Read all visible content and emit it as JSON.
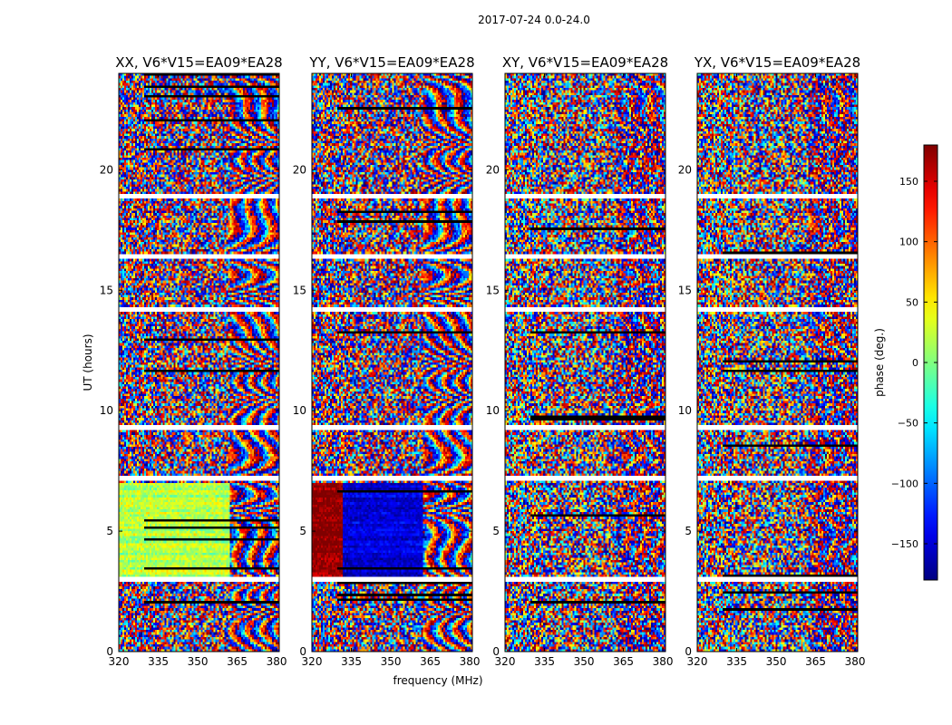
{
  "figure_title": "2017-07-24 0.0-24.0",
  "chart_data": {
    "type": "heatmap",
    "panels": [
      {
        "title": "XX, V6*V15=EA09*EA28",
        "profile": "xx",
        "ylabel": "UT (hours)",
        "xlabel": ""
      },
      {
        "title": "YY, V6*V15=EA09*EA28",
        "profile": "yy",
        "ylabel": "",
        "xlabel": "frequency (MHz)"
      },
      {
        "title": "XY, V6*V15=EA09*EA28",
        "profile": "cross",
        "ylabel": "",
        "xlabel": ""
      },
      {
        "title": "YX, V6*V15=EA09*EA28",
        "profile": "cross",
        "ylabel": "",
        "xlabel": ""
      }
    ],
    "xlim": [
      320,
      381
    ],
    "ylim": [
      0,
      24
    ],
    "x_ticks": [
      320,
      335,
      350,
      365,
      380
    ],
    "x_tick_labels": [
      "320",
      "335",
      "350",
      "365",
      "380"
    ],
    "y_ticks": [
      0,
      5,
      10,
      15,
      20
    ],
    "y_tick_labels": [
      "0",
      "5",
      "10",
      "15",
      "20"
    ],
    "gap_bands_hours": [
      [
        2.9,
        3.1
      ],
      [
        7.1,
        7.3
      ],
      [
        9.2,
        9.35
      ],
      [
        14.1,
        14.3
      ],
      [
        16.35,
        16.5
      ],
      [
        18.8,
        19.0
      ]
    ],
    "colorbar": {
      "label": "phase (deg.)",
      "range": [
        -180,
        180
      ],
      "ticks": [
        150,
        100,
        50,
        0,
        -50,
        -100,
        -150
      ],
      "tick_labels": [
        "150",
        "100",
        "50",
        "0",
        "−50",
        "−100",
        "−150"
      ],
      "colormap": "jet"
    }
  }
}
